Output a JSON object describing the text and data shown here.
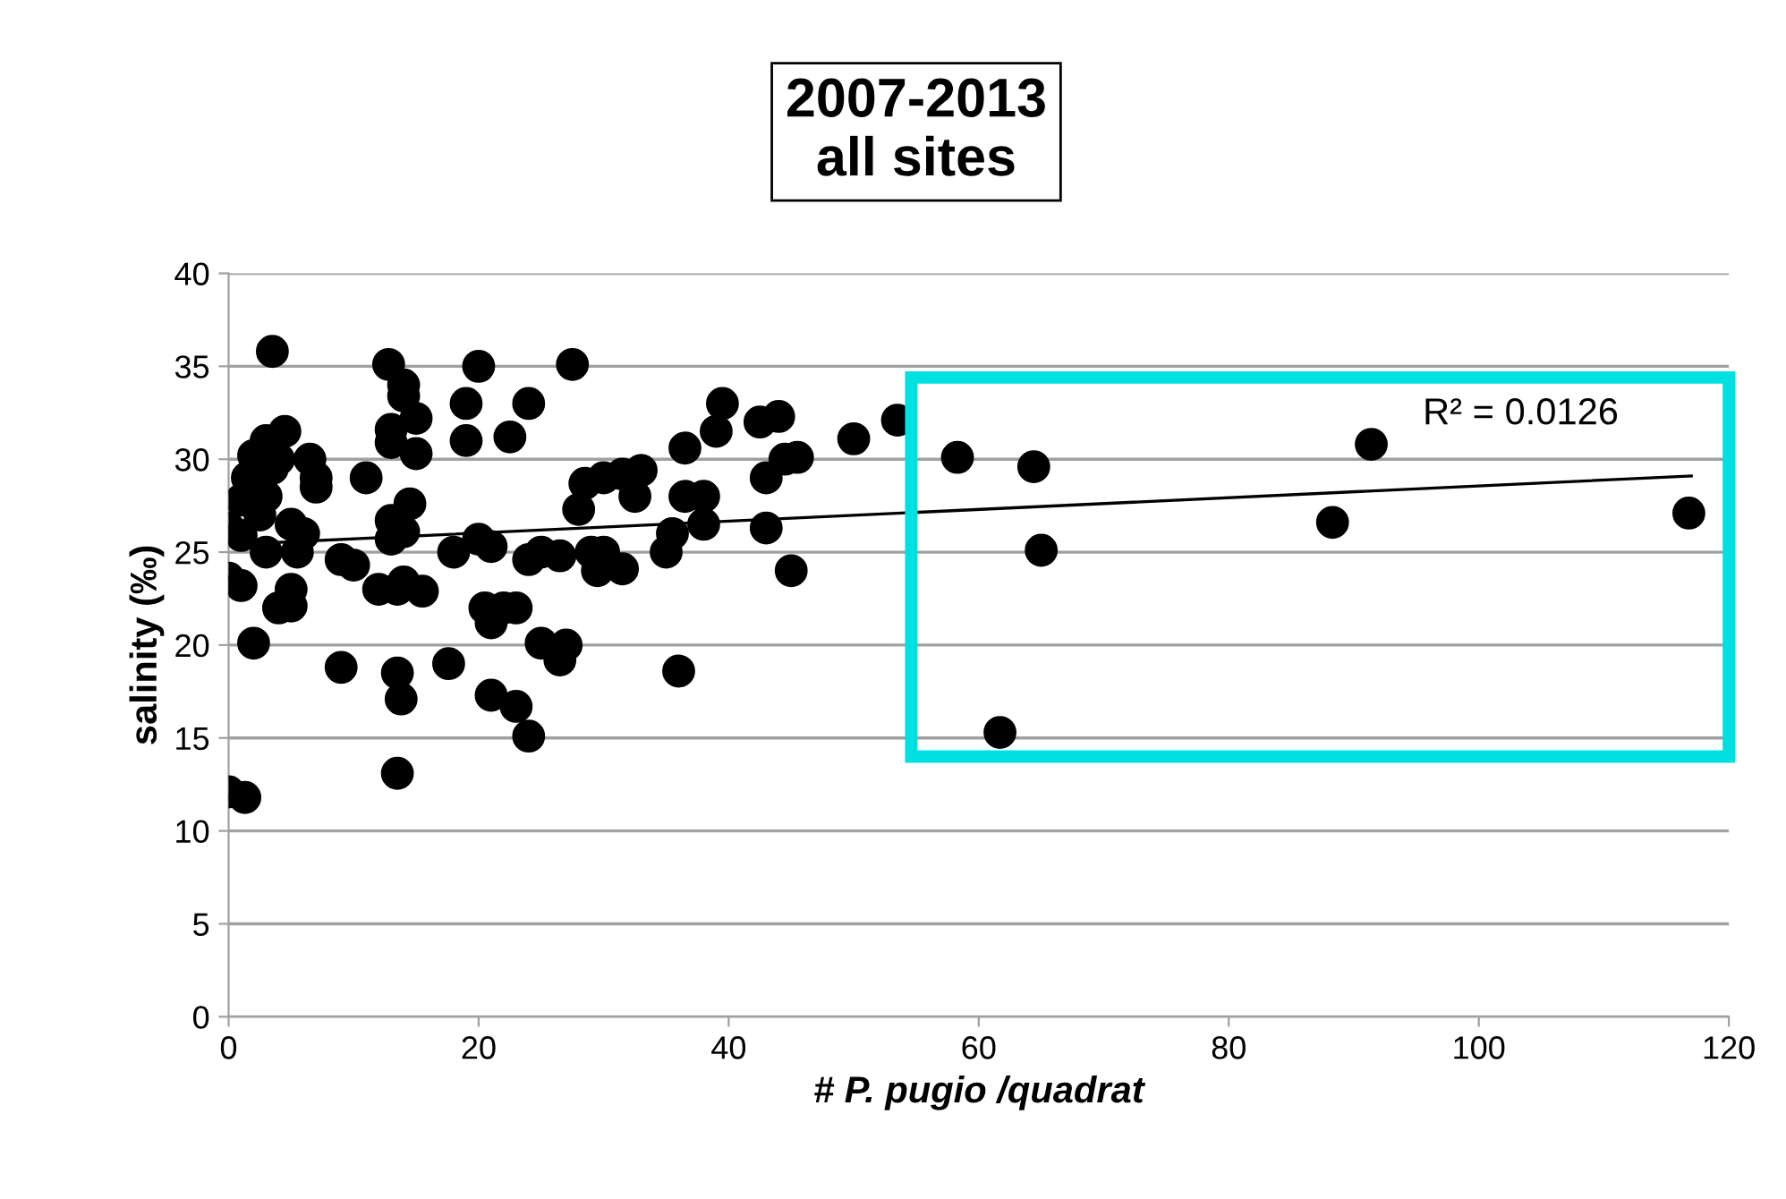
{
  "chart_data": {
    "type": "scatter",
    "title": "2007-2013\nall sites",
    "xlabel": "# P. pugio /quadrat",
    "ylabel": "salinity (‰)",
    "annotations": [
      "R² = 0.0126"
    ],
    "xlim": [
      0,
      120
    ],
    "xticks": [
      0,
      20,
      40,
      60,
      80,
      100,
      120
    ],
    "ylim": [
      0,
      40
    ],
    "yticks": [
      0,
      5,
      10,
      15,
      20,
      25,
      30,
      35,
      40
    ],
    "grid": "y",
    "marker": "circle",
    "series": [
      {
        "color": "#000000",
        "x": [
          0,
          1.3,
          0,
          0,
          1,
          1.5,
          1,
          1,
          2,
          2,
          3,
          3,
          3.5,
          4,
          4,
          4.5,
          5,
          5,
          5,
          5.5,
          6,
          6.5,
          7,
          7,
          3,
          2.5,
          3.5,
          9,
          9,
          10,
          11,
          12,
          12.8,
          13,
          13,
          13,
          13,
          14,
          14,
          14,
          13.5,
          13.5,
          13.8,
          13.5,
          14,
          14.5,
          15,
          15,
          15.5,
          17.6,
          18,
          19,
          19,
          20,
          20,
          20.5,
          21,
          21,
          21,
          22,
          22.5,
          23,
          23,
          24,
          24,
          24,
          25,
          25,
          26.5,
          26.5,
          27,
          27.5,
          28,
          28.5,
          29,
          29.5,
          30,
          30,
          31.5,
          31.5,
          32.5,
          33,
          35,
          35.5,
          36,
          36.5,
          36.5,
          38,
          38,
          39,
          39.5,
          42.5,
          43,
          43,
          44,
          44.5,
          45,
          45.5,
          50,
          53.5,
          58.3,
          61.7,
          64.4,
          65,
          88.3,
          91.4,
          116.8
        ],
        "values": [
          12.1,
          11.8,
          26.3,
          23.6,
          23.2,
          29,
          27.8,
          25.9,
          20.1,
          30.2,
          28,
          31,
          35.8,
          30,
          22,
          31.5,
          22.1,
          23,
          26.5,
          25,
          26,
          30,
          29,
          28.5,
          25,
          27,
          29.5,
          18.8,
          24.6,
          24.3,
          29,
          23,
          35.1,
          31.6,
          30.9,
          26.7,
          25.7,
          34,
          33.4,
          23.4,
          23,
          18.5,
          17.1,
          13.1,
          26.1,
          27.6,
          32.2,
          30.3,
          22.9,
          19,
          25,
          31,
          33,
          35,
          25.7,
          22,
          21.2,
          17.3,
          25.3,
          22,
          31.2,
          16.7,
          22,
          24.6,
          33,
          15.1,
          25,
          20.1,
          24.8,
          19.2,
          20,
          35.1,
          27.3,
          28.7,
          25,
          24,
          25,
          29,
          24.1,
          29.2,
          28,
          29.4,
          25,
          26,
          18.6,
          30.6,
          28,
          28,
          26.5,
          31.5,
          33,
          32,
          29,
          26.3,
          32.3,
          30,
          24,
          30.1,
          31.1,
          32.1,
          30.1,
          15.3,
          29.6,
          25.1,
          26.6,
          30.8,
          27.1
        ]
      },
      {
        "type": "line",
        "color": "#000000",
        "marker": "none",
        "x": [
          0,
          117
        ],
        "values": [
          25.4,
          29.1
        ]
      }
    ]
  }
}
